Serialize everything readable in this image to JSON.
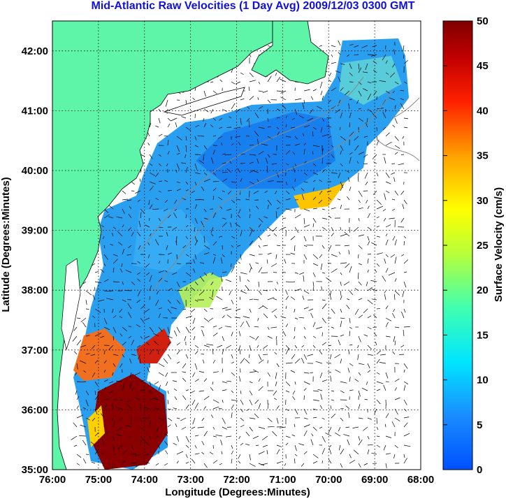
{
  "title": "Mid-Atlantic Raw Velocities (1 Day Avg) 2009/12/03 0300 GMT",
  "map": {
    "xlabel": "Longitude (Degrees:Minutes)",
    "ylabel": "Latitude (Degrees:Minutes)",
    "lon_range": [
      -76,
      -68
    ],
    "lat_range": [
      35,
      42.5
    ],
    "lon_ticks": [
      "76:00",
      "75:00",
      "74:00",
      "73:00",
      "72:00",
      "71:00",
      "70:00",
      "69:00",
      "68:00"
    ],
    "lat_ticks": [
      "35:00",
      "36:00",
      "37:00",
      "38:00",
      "39:00",
      "40:00",
      "41:00",
      "42:00"
    ],
    "grid": "dotted",
    "land_color": "#5ff5a8",
    "colorbar": {
      "label": "Surface Velocity (cm/s)",
      "ticks": [
        "0",
        "5",
        "10",
        "15",
        "20",
        "25",
        "30",
        "35",
        "40",
        "45",
        "50"
      ],
      "range": [
        0,
        50
      ],
      "colormap": "jet"
    }
  }
}
